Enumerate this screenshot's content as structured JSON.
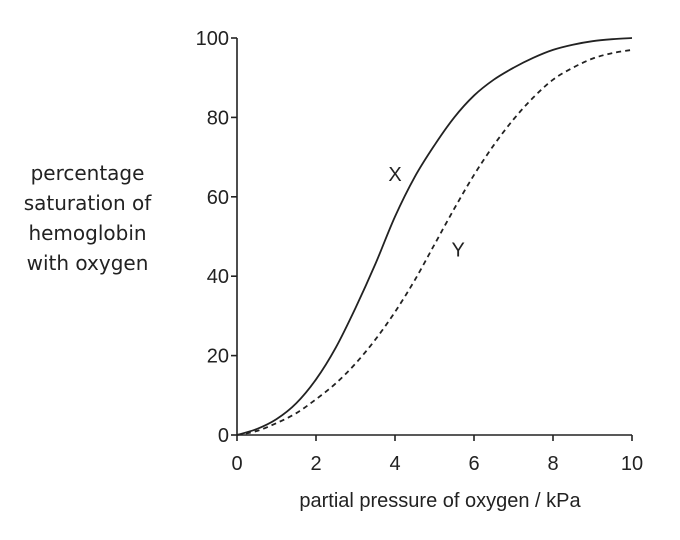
{
  "chart_data": {
    "type": "line",
    "title": "",
    "xlabel": "partial pressure of oxygen / kPa",
    "ylabel": [
      "percentage",
      "saturation of",
      "hemoglobin",
      "with oxygen"
    ],
    "xlim": [
      0,
      10
    ],
    "ylim": [
      0,
      100
    ],
    "x_ticks": [
      "0",
      "2",
      "4",
      "6",
      "8",
      "10"
    ],
    "y_ticks": [
      "0",
      "20",
      "40",
      "60",
      "80",
      "100"
    ],
    "grid": false,
    "legend": "none",
    "series": [
      {
        "name": "X",
        "style": "solid",
        "color": "#222222",
        "x": [
          0,
          0.5,
          1,
          1.5,
          2,
          2.5,
          3,
          3.5,
          4,
          4.5,
          5,
          5.5,
          6,
          6.5,
          7,
          7.5,
          8,
          8.5,
          9,
          9.5,
          10
        ],
        "values": [
          0,
          1.5,
          4,
          8,
          14,
          22,
          32,
          43,
          55,
          65,
          73,
          80,
          85.5,
          89.5,
          92.5,
          95,
          97,
          98.3,
          99.2,
          99.7,
          100
        ]
      },
      {
        "name": "Y",
        "style": "dashed",
        "color": "#222222",
        "x": [
          0,
          0.5,
          1,
          1.5,
          2,
          2.5,
          3,
          3.5,
          4,
          4.5,
          5,
          5.5,
          6,
          6.5,
          7,
          7.5,
          8,
          8.5,
          9,
          9.5,
          10
        ],
        "values": [
          0,
          1,
          3,
          5.5,
          9,
          13,
          18,
          24,
          31,
          39,
          48,
          57,
          65.5,
          73,
          79.5,
          85,
          89.5,
          92.5,
          94.8,
          96.2,
          97
        ]
      }
    ],
    "annotations": [
      {
        "text": "X",
        "x": 4,
        "y": 64
      },
      {
        "text": "Y",
        "x": 5.6,
        "y": 45
      }
    ]
  }
}
